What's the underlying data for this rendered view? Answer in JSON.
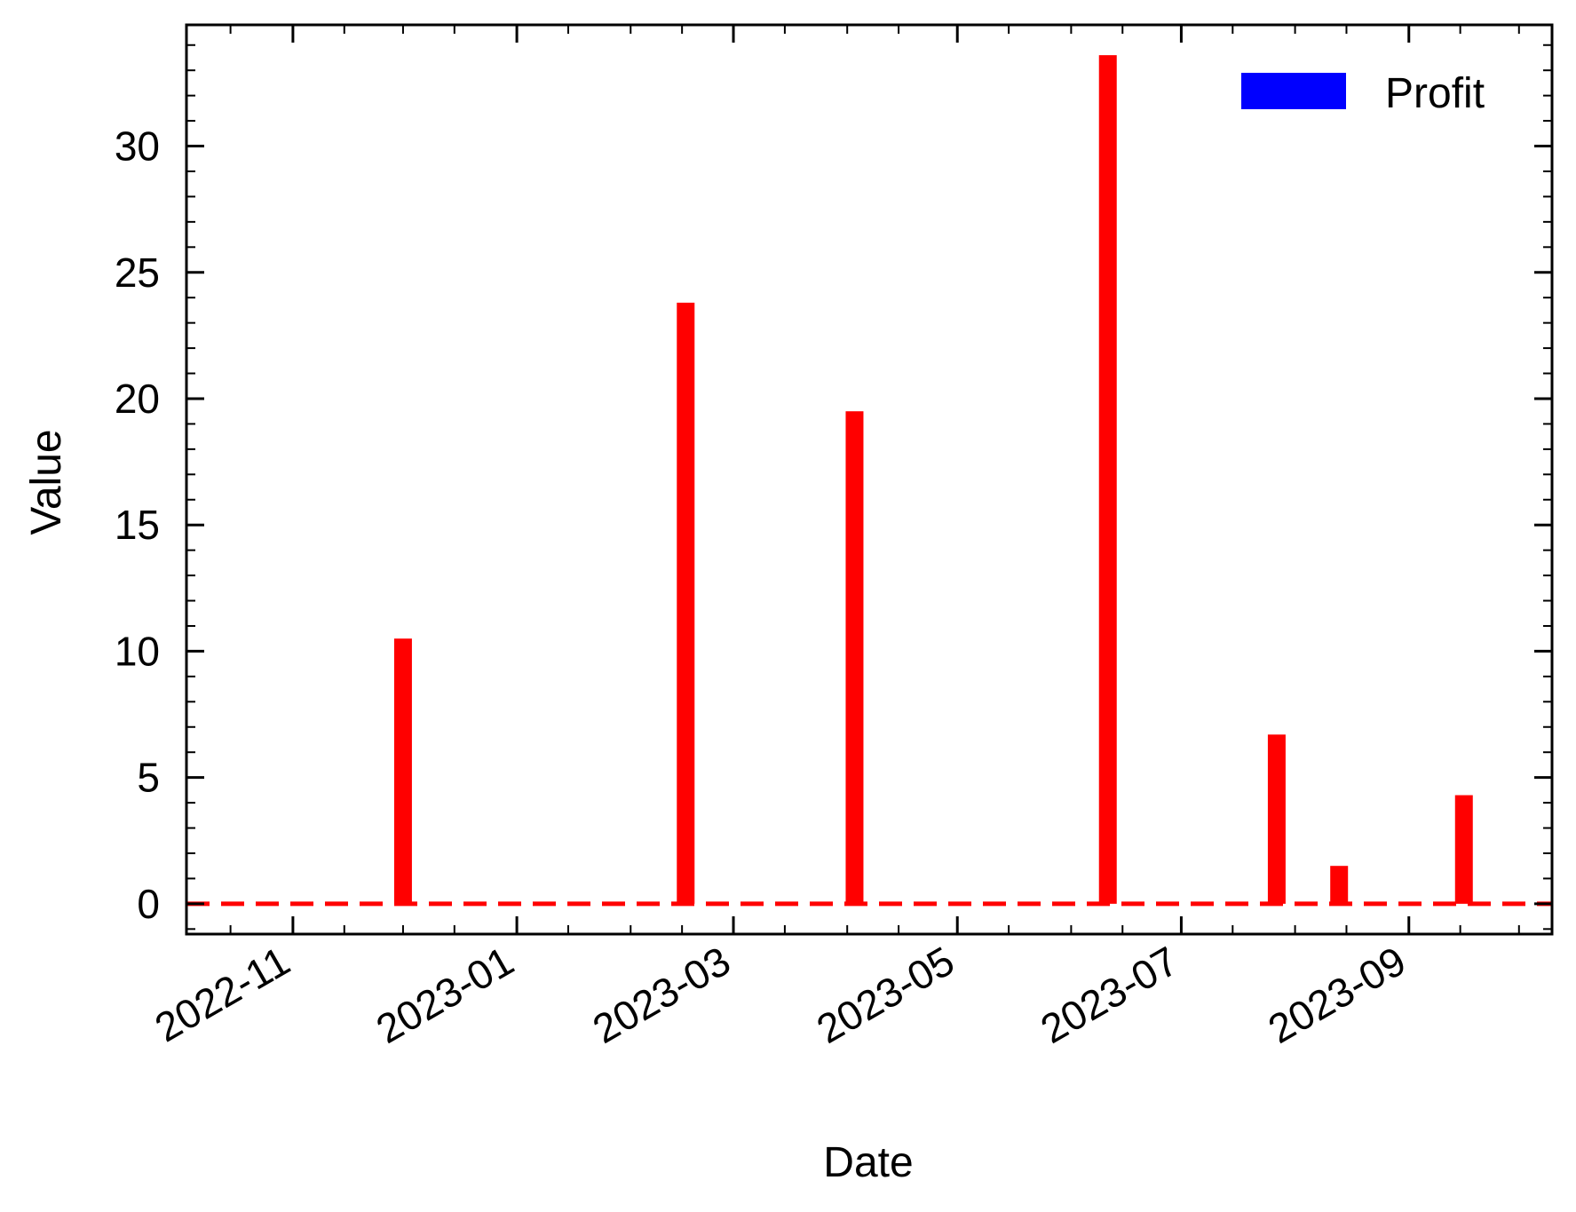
{
  "chart_data": {
    "type": "bar",
    "xlabel": "Date",
    "ylabel": "Value",
    "x_axis": "date",
    "x_tick_labels": [
      "2022-11",
      "2023-01",
      "2023-03",
      "2023-05",
      "2023-07",
      "2023-09"
    ],
    "x_ticks": [
      "2022-11-01",
      "2023-01-01",
      "2023-03-01",
      "2023-05-01",
      "2023-07-01",
      "2023-09-01"
    ],
    "xlim": [
      "2022-10-03",
      "2023-10-10"
    ],
    "y_ticks": [
      0,
      5,
      10,
      15,
      20,
      25,
      30
    ],
    "ylim": [
      -1.2,
      34.8
    ],
    "legend": {
      "label": "Profit",
      "color": "#0000ff",
      "position": "top-right"
    },
    "bar_color": "#ff0000",
    "reference_line": {
      "y": 0,
      "style": "dashed",
      "color": "#ff0000"
    },
    "series": [
      {
        "name": "Profit",
        "points": [
          {
            "x": "2022-12-01",
            "y": 10.5
          },
          {
            "x": "2023-02-16",
            "y": 23.8
          },
          {
            "x": "2023-04-03",
            "y": 19.5
          },
          {
            "x": "2023-06-11",
            "y": 33.6
          },
          {
            "x": "2023-07-27",
            "y": 6.7
          },
          {
            "x": "2023-08-13",
            "y": 1.5
          },
          {
            "x": "2023-09-16",
            "y": 4.3
          }
        ]
      }
    ]
  }
}
